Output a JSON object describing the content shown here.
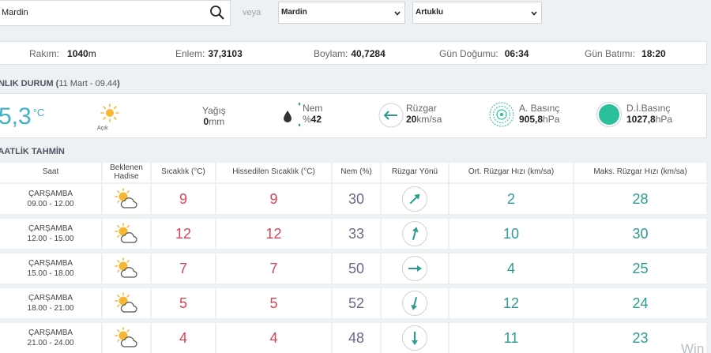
{
  "search": {
    "value": "Mardin"
  },
  "veya_label": "veya",
  "il_select": {
    "selected": "Mardin"
  },
  "ilce_select": {
    "selected": "Artuklu"
  },
  "station": {
    "rakim_label": "Rakım:",
    "rakim_value": "1040",
    "rakim_unit": "m",
    "enlem_label": "Enlem:",
    "enlem_value": "37,3103",
    "boylam_label": "Boylam:",
    "boylam_value": "40,7284",
    "gundogumu_label": "Gün Doğumu:",
    "gundogumu_value": "06:34",
    "gunbatimi_label": "Gün Batımı:",
    "gunbatimi_value": "18:20"
  },
  "current": {
    "title": "ANLIK DURUM (",
    "title_sub": "11 Mart - 09.44",
    "title_close": ")",
    "temperature": "5,3",
    "temperature_unit": "°C",
    "condition": "Açık",
    "yagis_label": "Yağış",
    "yagis_value": "0",
    "yagis_unit": "mm",
    "nem_label": "Nem",
    "nem_prefix": "%",
    "nem_value": "42",
    "ruzgar_label": "Rüzgar",
    "ruzgar_value": "20",
    "ruzgar_unit": "km/sa",
    "abasinc_label": "A. Basınç",
    "abasinc_value": "905,8",
    "abasinc_unit": "hPa",
    "dibasinc_label": "D.İ.Basınç",
    "dibasinc_value": "1027,8",
    "dibasinc_unit": "hPa"
  },
  "forecast": {
    "title": "SAATLİK TAHMİN",
    "headers": {
      "saat": "Saat",
      "hadise_1": "Beklenen",
      "hadise_2": "Hadise",
      "sicaklik": "Sıcaklık (°C)",
      "hissedilen": "Hissedilen Sıcaklık (°C)",
      "nem": "Nem (%)",
      "yon": "Rüzgar Yönü",
      "ort": "Ort. Rüzgar Hızı (km/sa)",
      "maks": "Maks. Rüzgar Hızı (km/sa)"
    },
    "rows": [
      {
        "day": "ÇARŞAMBA",
        "time": "09.00 - 12.00",
        "temp": "9",
        "feels": "9",
        "humidity": "30",
        "wind_dir_deg": 45,
        "avg": "2",
        "max": "28"
      },
      {
        "day": "ÇARŞAMBA",
        "time": "12.00 - 15.00",
        "temp": "12",
        "feels": "12",
        "humidity": "33",
        "wind_dir_deg": 15,
        "avg": "10",
        "max": "30"
      },
      {
        "day": "ÇARŞAMBA",
        "time": "15.00 - 18.00",
        "temp": "7",
        "feels": "7",
        "humidity": "50",
        "wind_dir_deg": 90,
        "avg": "4",
        "max": "25"
      },
      {
        "day": "ÇARŞAMBA",
        "time": "18.00 - 21.00",
        "temp": "5",
        "feels": "5",
        "humidity": "52",
        "wind_dir_deg": 195,
        "avg": "12",
        "max": "24"
      },
      {
        "day": "ÇARŞAMBA",
        "time": "21.00 - 24.00",
        "temp": "4",
        "feels": "4",
        "humidity": "48",
        "wind_dir_deg": 180,
        "avg": "11",
        "max": "23"
      }
    ]
  },
  "watermark": "Win",
  "colors": {
    "accent_teal": "#2a9d8f",
    "temp_red": "#d64455",
    "humidity_purple": "#6c6a8a",
    "current_temp": "#3fb0c5"
  }
}
